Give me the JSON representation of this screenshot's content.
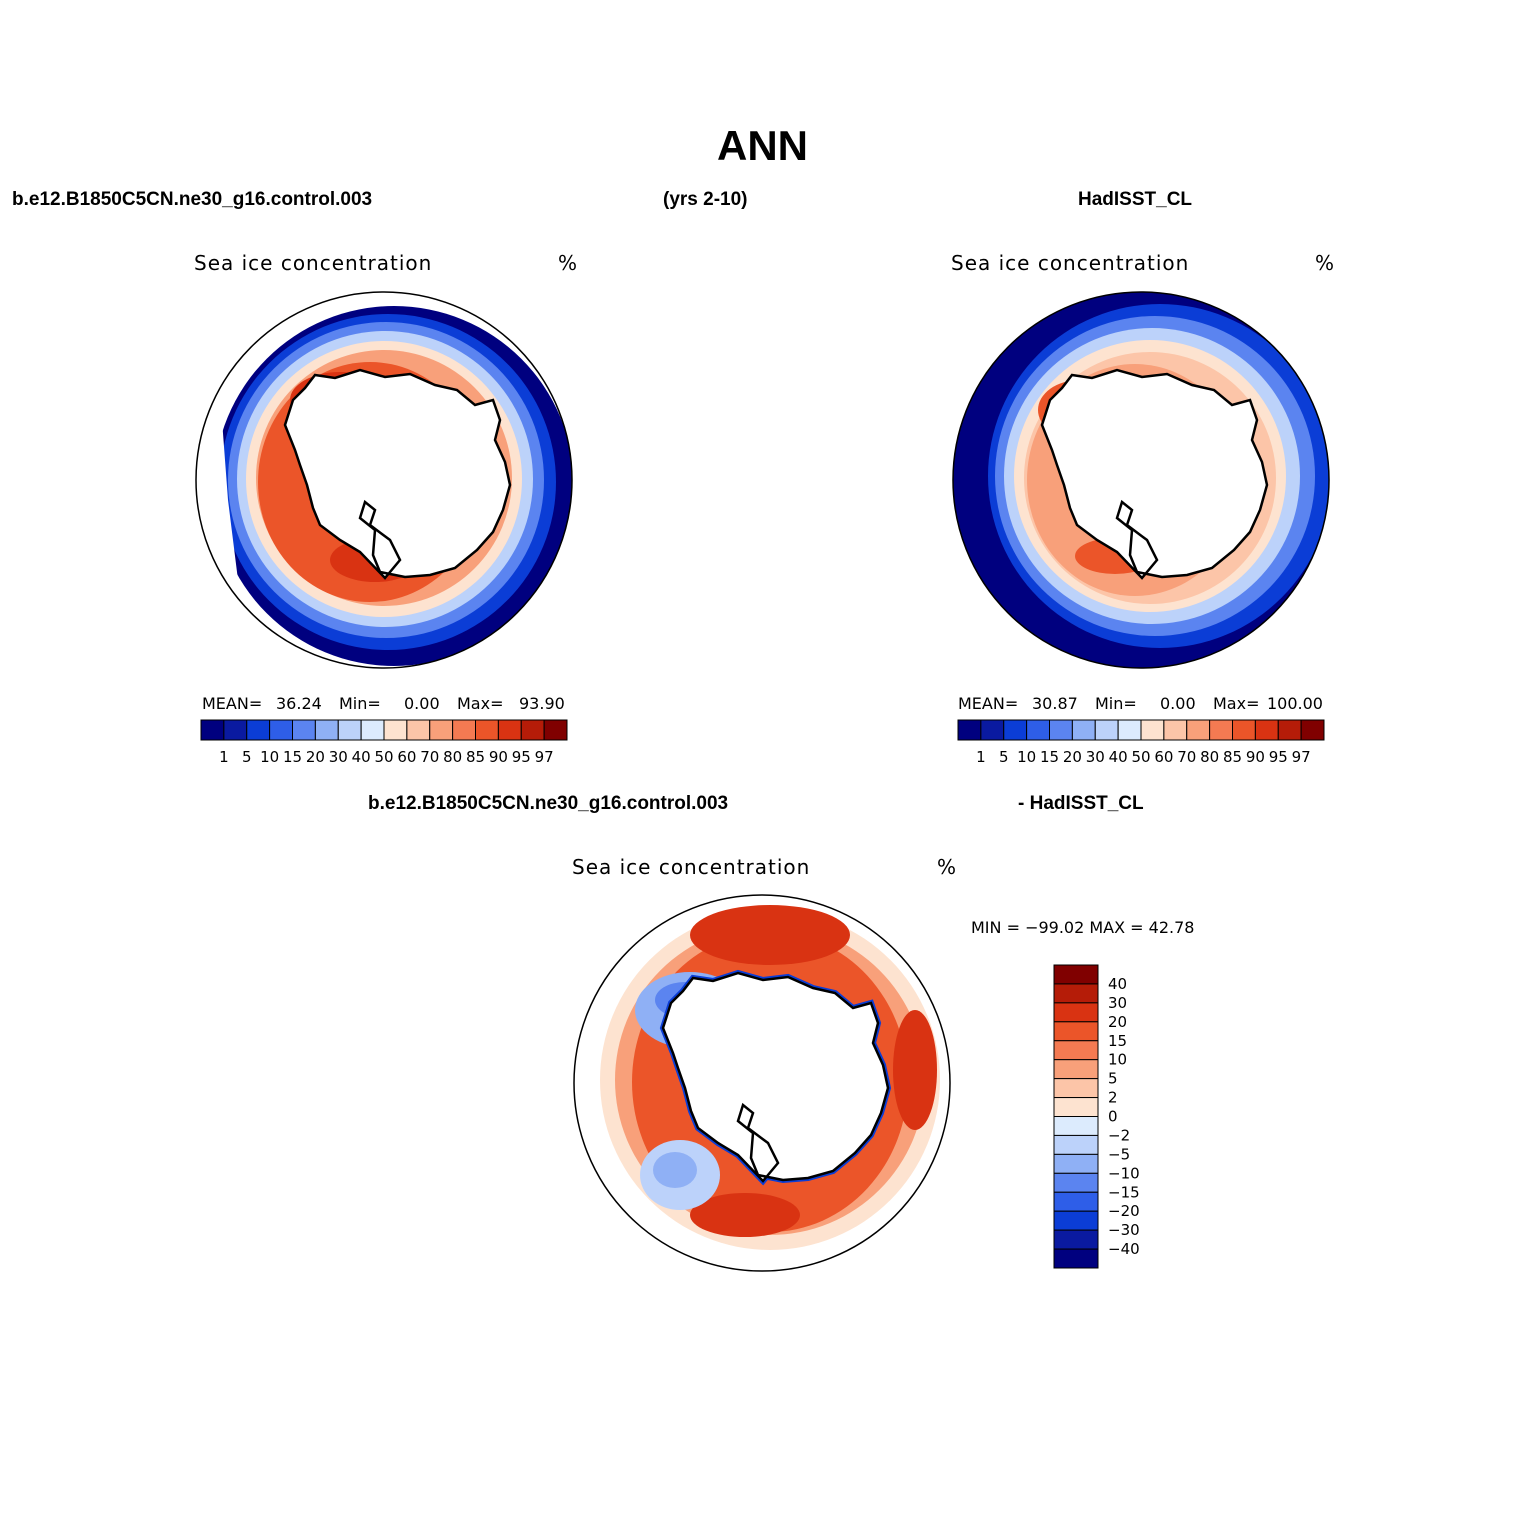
{
  "figure": {
    "title": "ANN",
    "top_left_case": "b.e12.B1850C5CN.ne30_g16.control.003",
    "years": "(yrs 2-10)",
    "top_right_case": "HadISST_CL",
    "diff_case": "b.e12.B1850C5CN.ne30_g16.control.003",
    "diff_minus": "- HadISST_CL"
  },
  "panels": [
    {
      "name": "model",
      "title": "Sea ice concentration",
      "units": "%",
      "mean_label": "MEAN=",
      "mean": "36.24",
      "min_label": "Min=",
      "min": "0.00",
      "max_label": "Max=",
      "max": "93.90"
    },
    {
      "name": "obs",
      "title": "Sea ice concentration",
      "units": "%",
      "mean_label": "MEAN=",
      "mean": "30.87",
      "min_label": "Min=",
      "min": "0.00",
      "max_label": "Max=",
      "max": "100.00"
    },
    {
      "name": "difference",
      "title": "Sea ice concentration",
      "units": "%",
      "minmax": "MIN = −99.02 MAX =   42.78"
    }
  ],
  "colorbars": {
    "abs": {
      "levels": [
        "1",
        "5",
        "10",
        "15",
        "20",
        "30",
        "40",
        "50",
        "60",
        "70",
        "80",
        "85",
        "90",
        "95",
        "97"
      ],
      "colors": [
        "#00007f",
        "#0a1aa0",
        "#0b3dd6",
        "#2e5ee8",
        "#5b84f0",
        "#8fb0f5",
        "#bcd2fa",
        "#dcebfd",
        "#fde3d0",
        "#fcc5a8",
        "#f8a07a",
        "#f47a52",
        "#eb5529",
        "#d93312",
        "#b51c08",
        "#800000"
      ]
    },
    "diff": {
      "levels": [
        "40",
        "30",
        "20",
        "15",
        "10",
        "5",
        "2",
        "0",
        "−2",
        "−5",
        "−10",
        "−15",
        "−20",
        "−30",
        "−40"
      ],
      "colors": [
        "#800000",
        "#b51c08",
        "#d93312",
        "#eb5529",
        "#f47a52",
        "#f8a07a",
        "#fcc5a8",
        "#fde3d0",
        "#dcebfd",
        "#bcd2fa",
        "#8fb0f5",
        "#5b84f0",
        "#2e5ee8",
        "#0b3dd6",
        "#0a1aa0",
        "#00007f"
      ]
    }
  }
}
